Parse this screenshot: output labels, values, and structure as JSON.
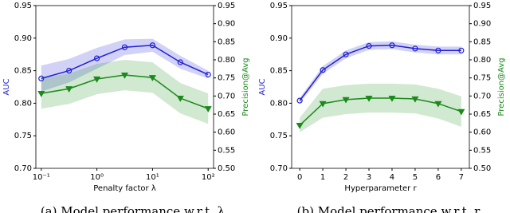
{
  "chart_data": [
    {
      "type": "line",
      "caption": "(a) Model performance w.r.t. λ",
      "xlabel": "Penalty factor λ",
      "ylabel": "AUC",
      "y2label": "Precision@Avg",
      "x": [
        0.1,
        0.316,
        1,
        3.16,
        10,
        31.6,
        100
      ],
      "xscale": "log",
      "xlim": [
        0.08,
        125
      ],
      "xticks": [
        {
          "value": 0.1,
          "label": "10⁻¹"
        },
        {
          "value": 1,
          "label": "10⁰"
        },
        {
          "value": 10,
          "label": "10¹"
        },
        {
          "value": 100,
          "label": "10²"
        }
      ],
      "ylim": [
        0.7,
        0.95
      ],
      "yticks": [
        {
          "value": 0.7,
          "label": "0.70"
        },
        {
          "value": 0.75,
          "label": "0.75"
        },
        {
          "value": 0.8,
          "label": "0.80"
        },
        {
          "value": 0.85,
          "label": "0.85"
        },
        {
          "value": 0.9,
          "label": "0.90"
        },
        {
          "value": 0.95,
          "label": "0.95"
        }
      ],
      "y2lim": [
        0.5,
        0.95
      ],
      "y2ticks": [
        {
          "value": 0.5,
          "label": "0.50"
        },
        {
          "value": 0.55,
          "label": "0.55"
        },
        {
          "value": 0.6,
          "label": "0.60"
        },
        {
          "value": 0.65,
          "label": "0.65"
        },
        {
          "value": 0.7,
          "label": "0.70"
        },
        {
          "value": 0.75,
          "label": "0.75"
        },
        {
          "value": 0.8,
          "label": "0.80"
        },
        {
          "value": 0.85,
          "label": "0.85"
        },
        {
          "value": 0.9,
          "label": "0.90"
        },
        {
          "value": 0.95,
          "label": "0.95"
        }
      ],
      "series": [
        {
          "name": "AUC",
          "color": "#1f1fd6",
          "marker": "circle",
          "values": [
            0.838,
            0.85,
            0.869,
            0.886,
            0.889,
            0.863,
            0.844
          ],
          "lower": [
            0.818,
            0.832,
            0.853,
            0.874,
            0.879,
            0.853,
            0.838
          ],
          "upper": [
            0.858,
            0.868,
            0.885,
            0.898,
            0.899,
            0.873,
            0.85
          ]
        },
        {
          "name": "Precision@Avg",
          "color": "#1a8a1a",
          "marker": "triangle-down",
          "axis": "y2",
          "values": [
            0.707,
            0.72,
            0.747,
            0.758,
            0.751,
            0.694,
            0.665
          ],
          "lower": [
            0.665,
            0.678,
            0.705,
            0.716,
            0.709,
            0.652,
            0.623
          ],
          "upper": [
            0.749,
            0.762,
            0.789,
            0.8,
            0.793,
            0.736,
            0.707
          ]
        }
      ]
    },
    {
      "type": "line",
      "caption": "(b) Model performance w.r.t. r",
      "xlabel": "Hyperparameter r",
      "ylabel": "AUC",
      "y2label": "Precision@Avg",
      "x": [
        0,
        1,
        2,
        3,
        4,
        5,
        6,
        7
      ],
      "xscale": "linear",
      "xlim": [
        -0.35,
        7.35
      ],
      "xticks": [
        0,
        1,
        2,
        3,
        4,
        5,
        6,
        7
      ],
      "ylim": [
        0.7,
        0.95
      ],
      "yticks": [
        {
          "value": 0.7,
          "label": "0.70"
        },
        {
          "value": 0.75,
          "label": "0.75"
        },
        {
          "value": 0.8,
          "label": "0.80"
        },
        {
          "value": 0.85,
          "label": "0.85"
        },
        {
          "value": 0.9,
          "label": "0.90"
        },
        {
          "value": 0.95,
          "label": "0.95"
        }
      ],
      "y2lim": [
        0.5,
        0.95
      ],
      "y2ticks": [
        {
          "value": 0.5,
          "label": "0.50"
        },
        {
          "value": 0.55,
          "label": "0.55"
        },
        {
          "value": 0.6,
          "label": "0.60"
        },
        {
          "value": 0.65,
          "label": "0.65"
        },
        {
          "value": 0.7,
          "label": "0.70"
        },
        {
          "value": 0.75,
          "label": "0.75"
        },
        {
          "value": 0.8,
          "label": "0.80"
        },
        {
          "value": 0.85,
          "label": "0.85"
        },
        {
          "value": 0.9,
          "label": "0.90"
        },
        {
          "value": 0.95,
          "label": "0.95"
        }
      ],
      "series": [
        {
          "name": "AUC",
          "color": "#1f1fd6",
          "marker": "circle",
          "values": [
            0.804,
            0.851,
            0.875,
            0.888,
            0.889,
            0.884,
            0.881,
            0.881
          ],
          "lower": [
            0.8,
            0.845,
            0.869,
            0.882,
            0.883,
            0.878,
            0.875,
            0.875
          ],
          "upper": [
            0.808,
            0.857,
            0.881,
            0.894,
            0.895,
            0.89,
            0.887,
            0.887
          ]
        },
        {
          "name": "Precision@Avg",
          "color": "#1a8a1a",
          "marker": "triangle-down",
          "axis": "y2",
          "values": [
            0.619,
            0.679,
            0.69,
            0.694,
            0.694,
            0.692,
            0.679,
            0.657
          ],
          "lower": [
            0.6,
            0.64,
            0.65,
            0.654,
            0.654,
            0.652,
            0.638,
            0.615
          ],
          "upper": [
            0.64,
            0.72,
            0.73,
            0.734,
            0.734,
            0.732,
            0.72,
            0.699
          ]
        }
      ]
    }
  ]
}
